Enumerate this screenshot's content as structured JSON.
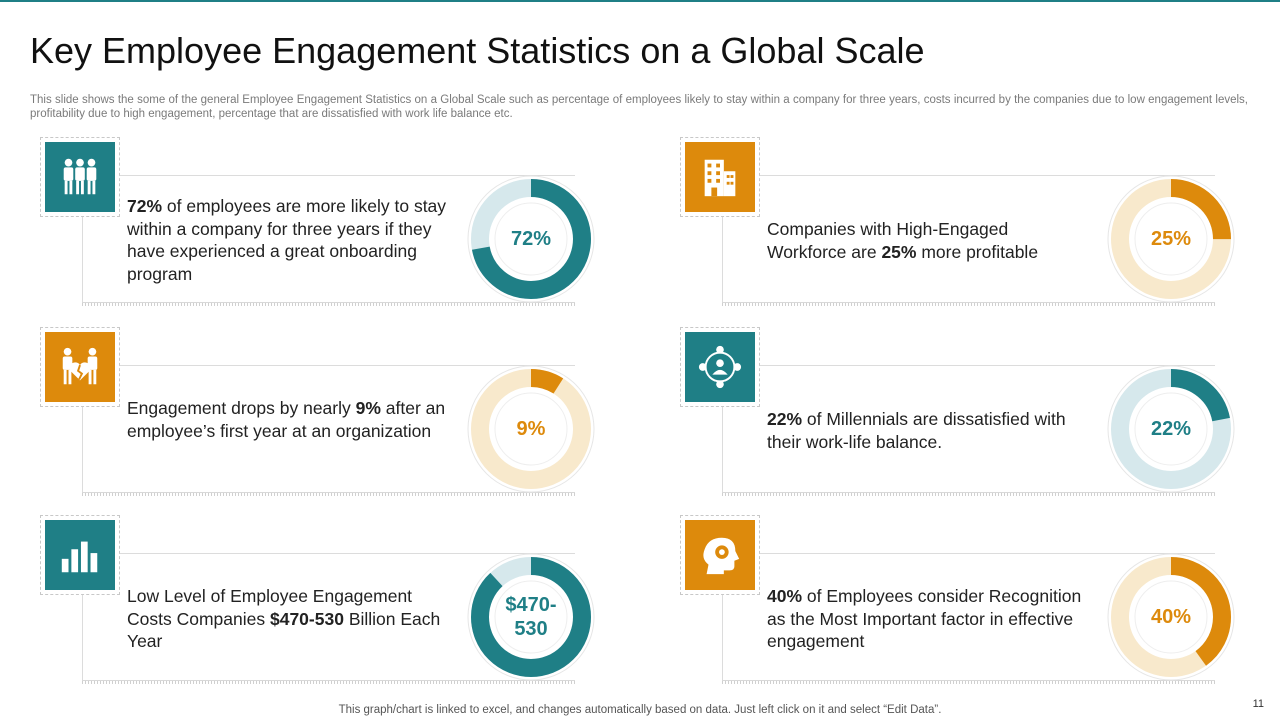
{
  "title": "Key Employee Engagement Statistics on a Global Scale",
  "subtitle": "This slide shows the some of the general Employee Engagement Statistics on a Global Scale such as percentage of employees likely to stay within a company for three years, costs incurred by the companies due to low engagement levels, profitability due to high engagement, percentage that are dissatisfied with work life balance etc.",
  "colors": {
    "teal": "#1f7f86",
    "teal_light": "#d6e8ec",
    "orange": "#dd8a0c",
    "orange_light": "#f8e9cc"
  },
  "stats": [
    {
      "icon": "team-icon",
      "bold": "72%",
      "text": " of employees are more likely to stay within a company for three years if they have experienced a great onboarding program",
      "value_label": "72%",
      "percent": 72,
      "color": "teal"
    },
    {
      "icon": "building-icon",
      "text_before": "Companies with High-Engaged Workforce are ",
      "bold": "25%",
      "text": " more profitable",
      "value_label": "25%",
      "percent": 25,
      "color": "orange"
    },
    {
      "icon": "broken-heart-people-icon",
      "text_before": "Engagement drops by nearly ",
      "bold": "9%",
      "text": " after an employee’s first year at an organization",
      "value_label": "9%",
      "percent": 9,
      "color": "orange"
    },
    {
      "icon": "network-user-icon",
      "bold": "22%",
      "text": " of Millennials are dissatisfied with their work-life balance.",
      "value_label": "22%",
      "percent": 22,
      "color": "teal"
    },
    {
      "icon": "bar-chart-icon",
      "text_before": "Low Level of Employee Engagement Costs Companies ",
      "bold": "$470-530",
      "text": " Billion Each Year",
      "value_label": "$470-530",
      "percent": 88,
      "color": "teal"
    },
    {
      "icon": "head-gear-icon",
      "bold": "40%",
      "text": " of Employees consider Recognition as the Most Important factor in effective engagement",
      "value_label": "40%",
      "percent": 40,
      "color": "orange"
    }
  ],
  "footer": "This graph/chart is linked to excel, and changes automatically based on data. Just left click on it and select “Edit Data”.",
  "page_number": "11"
}
